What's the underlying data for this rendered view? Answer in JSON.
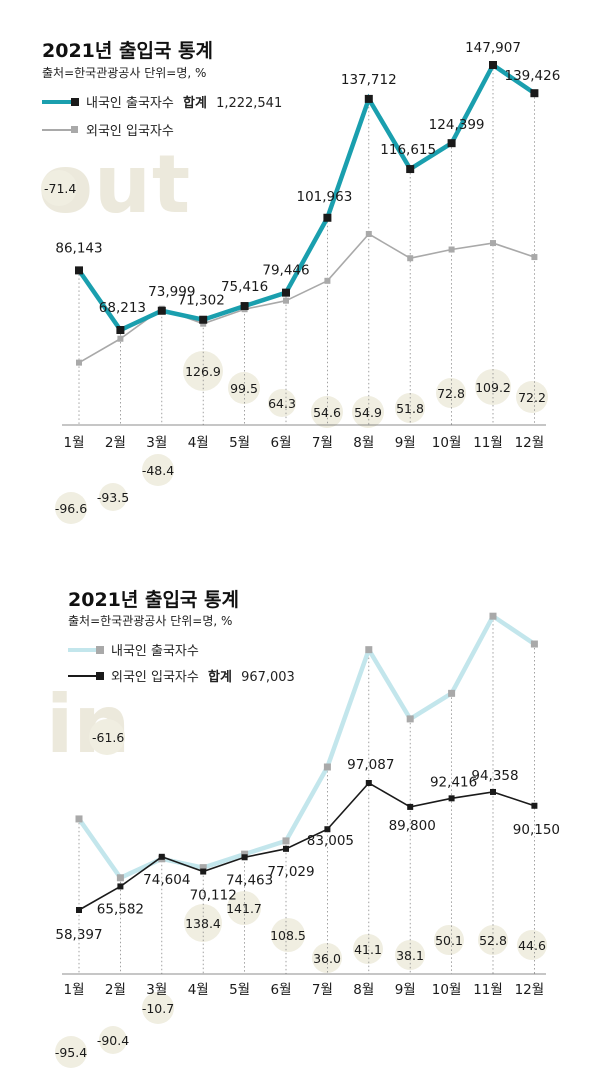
{
  "colors": {
    "teal": "#1a9fae",
    "gray": "#a9a9a9",
    "light_teal": "#c3e6ec",
    "black": "#1a1a1a",
    "bubble": "#f0eee1",
    "watermark": "#ece9dc"
  },
  "chart_data": [
    {
      "type": "line",
      "title": "2021년 출입국 통계",
      "subtitle": "출처=한국관광공사 단위=명, %",
      "watermark": "out",
      "categories": [
        "1월",
        "2월",
        "3월",
        "4월",
        "5월",
        "6월",
        "7월",
        "8월",
        "9월",
        "10월",
        "11월",
        "12월"
      ],
      "series": [
        {
          "name": "내국인 출국자수",
          "legend_total_label": "합계",
          "legend_total": "1,222,541",
          "emphasis": true,
          "values": [
            86143,
            68213,
            73999,
            71302,
            75416,
            79446,
            101963,
            137712,
            116615,
            124399,
            147907,
            139426
          ],
          "value_labels": [
            "86,143",
            "68,213",
            "73,999",
            "71,302",
            "75,416",
            "79,446",
            "101,963",
            "137,712",
            "116,615",
            "124,399",
            "147,907",
            "139,426"
          ],
          "yoy_change": [
            "-96.6",
            "-93.5",
            "-48.4",
            "126.9",
            "99.5",
            "64.3",
            "54.6",
            "54.9",
            "51.8",
            "72.8",
            "109.2",
            "72.2"
          ],
          "total_yoy_change": "-71.4"
        },
        {
          "name": "외국인 입국자수",
          "emphasis": false,
          "values": [
            58397,
            65582,
            74604,
            70112,
            74463,
            77029,
            83005,
            97087,
            89800,
            92416,
            94358,
            90150
          ]
        }
      ],
      "ylim": [
        0,
        155000
      ],
      "grid": "vertical dotted",
      "legend_position": "top-left"
    },
    {
      "type": "line",
      "title": "2021년 출입국 통계",
      "subtitle": "출처=한국관광공사 단위=명, %",
      "watermark": "in",
      "categories": [
        "1월",
        "2월",
        "3월",
        "4월",
        "5월",
        "6월",
        "7월",
        "8월",
        "9월",
        "10월",
        "11월",
        "12월"
      ],
      "series": [
        {
          "name": "내국인 출국자수",
          "emphasis": false,
          "values": [
            86143,
            68213,
            73999,
            71302,
            75416,
            79446,
            101963,
            137712,
            116615,
            124399,
            147907,
            139426
          ]
        },
        {
          "name": "외국인 입국자수",
          "legend_total_label": "합계",
          "legend_total": "967,003",
          "emphasis": true,
          "values": [
            58397,
            65582,
            74604,
            70112,
            74463,
            77029,
            83005,
            97087,
            89800,
            92416,
            94358,
            90150
          ],
          "value_labels": [
            "58,397",
            "65,582",
            "74,604",
            "70,112",
            "74,463",
            "77,029",
            "83,005",
            "97,087",
            "89,800",
            "92,416",
            "94,358",
            "90,150"
          ],
          "yoy_change": [
            "-95.4",
            "-90.4",
            "-10.7",
            "138.4",
            "141.7",
            "108.5",
            "36.0",
            "41.1",
            "38.1",
            "50.1",
            "52.8",
            "44.6"
          ],
          "total_yoy_change": "-61.6"
        }
      ],
      "ylim": [
        0,
        155000
      ],
      "grid": "vertical dotted",
      "legend_position": "top-left"
    }
  ]
}
